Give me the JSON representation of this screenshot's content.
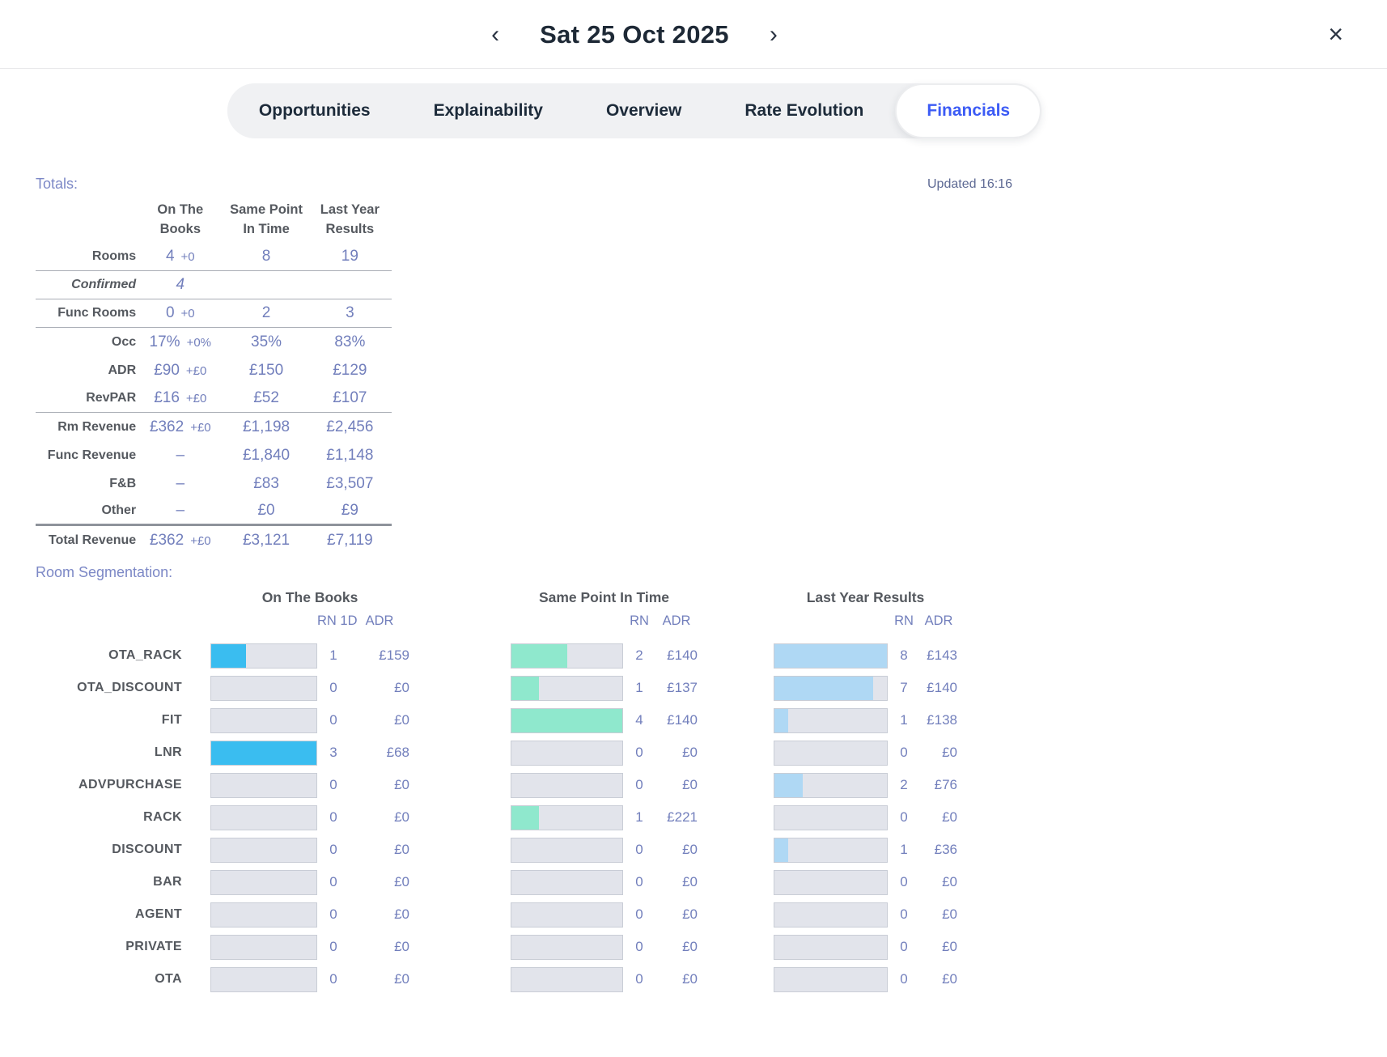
{
  "header": {
    "title": "Sat 25 Oct 2025",
    "prev_icon": "‹",
    "next_icon": "›",
    "close_icon": "×"
  },
  "tabs": {
    "items": [
      {
        "label": "Opportunities",
        "active": false
      },
      {
        "label": "Explainability",
        "active": false
      },
      {
        "label": "Overview",
        "active": false
      },
      {
        "label": "Rate Evolution",
        "active": false
      },
      {
        "label": "Financials",
        "active": true
      }
    ]
  },
  "status": {
    "updated": "Updated 16:16"
  },
  "colors": {
    "accent_blue": "#3C5BF5",
    "value_text": "#727FBC",
    "label_text": "#55595F",
    "otb_bar": "#3ABDF0",
    "spit_bar": "#8FE8CD",
    "ly_bar": "#AFD8F4",
    "bar_track": "#E2E4EB"
  },
  "totals": {
    "section_label": "Totals:",
    "columns": [
      "On The\nBooks",
      "Same Point\nIn Time",
      "Last Year\nResults"
    ],
    "rows": [
      {
        "label": "Rooms",
        "otb": "4",
        "delta": "+0",
        "spit": "8",
        "ly": "19",
        "divider": "thin"
      },
      {
        "label": "Confirmed",
        "otb": "4",
        "delta": "",
        "spit": "",
        "ly": "",
        "divider": "thin",
        "italic": true
      },
      {
        "label": "Func Rooms",
        "otb": "0",
        "delta": "+0",
        "spit": "2",
        "ly": "3",
        "divider": "thin"
      },
      {
        "label": "Occ",
        "otb": "17%",
        "delta": "+0%",
        "spit": "35%",
        "ly": "83%"
      },
      {
        "label": "ADR",
        "otb": "£90",
        "delta": "+£0",
        "spit": "£150",
        "ly": "£129"
      },
      {
        "label": "RevPAR",
        "otb": "£16",
        "delta": "+£0",
        "spit": "£52",
        "ly": "£107",
        "divider": "thin"
      },
      {
        "label": "Rm Revenue",
        "otb": "£362",
        "delta": "+£0",
        "spit": "£1,198",
        "ly": "£2,456"
      },
      {
        "label": "Func Revenue",
        "otb": "–",
        "delta": "",
        "spit": "£1,840",
        "ly": "£1,148"
      },
      {
        "label": "F&B",
        "otb": "–",
        "delta": "",
        "spit": "£83",
        "ly": "£3,507"
      },
      {
        "label": "Other",
        "otb": "–",
        "delta": "",
        "spit": "£0",
        "ly": "£9",
        "divider": "thick"
      },
      {
        "label": "Total Revenue",
        "otb": "£362",
        "delta": "+£0",
        "spit": "£3,121",
        "ly": "£7,119",
        "total": true
      }
    ]
  },
  "segmentation": {
    "section_label": "Room Segmentation:",
    "groups": [
      {
        "title": "On The Books",
        "rn_header": "RN 1D",
        "adr_header": "ADR",
        "bar_color": "#3ABDF0"
      },
      {
        "title": "Same Point In Time",
        "rn_header": "RN",
        "adr_header": "ADR",
        "bar_color": "#8FE8CD"
      },
      {
        "title": "Last Year Results",
        "rn_header": "RN",
        "adr_header": "ADR",
        "bar_color": "#AFD8F4"
      }
    ],
    "rows": [
      {
        "label": "OTA_RACK",
        "cells": [
          {
            "rn": 1,
            "adr": "£159"
          },
          {
            "rn": 2,
            "adr": "£140"
          },
          {
            "rn": 8,
            "adr": "£143"
          }
        ]
      },
      {
        "label": "OTA_DISCOUNT",
        "cells": [
          {
            "rn": 0,
            "adr": "£0"
          },
          {
            "rn": 1,
            "adr": "£137"
          },
          {
            "rn": 7,
            "adr": "£140"
          }
        ]
      },
      {
        "label": "FIT",
        "cells": [
          {
            "rn": 0,
            "adr": "£0"
          },
          {
            "rn": 4,
            "adr": "£140"
          },
          {
            "rn": 1,
            "adr": "£138"
          }
        ]
      },
      {
        "label": "LNR",
        "cells": [
          {
            "rn": 3,
            "adr": "£68"
          },
          {
            "rn": 0,
            "adr": "£0"
          },
          {
            "rn": 0,
            "adr": "£0"
          }
        ]
      },
      {
        "label": "ADVPURCHASE",
        "cells": [
          {
            "rn": 0,
            "adr": "£0"
          },
          {
            "rn": 0,
            "adr": "£0"
          },
          {
            "rn": 2,
            "adr": "£76"
          }
        ]
      },
      {
        "label": "RACK",
        "cells": [
          {
            "rn": 0,
            "adr": "£0"
          },
          {
            "rn": 1,
            "adr": "£221"
          },
          {
            "rn": 0,
            "adr": "£0"
          }
        ]
      },
      {
        "label": "DISCOUNT",
        "cells": [
          {
            "rn": 0,
            "adr": "£0"
          },
          {
            "rn": 0,
            "adr": "£0"
          },
          {
            "rn": 1,
            "adr": "£36"
          }
        ]
      },
      {
        "label": "BAR",
        "cells": [
          {
            "rn": 0,
            "adr": "£0"
          },
          {
            "rn": 0,
            "adr": "£0"
          },
          {
            "rn": 0,
            "adr": "£0"
          }
        ]
      },
      {
        "label": "AGENT",
        "cells": [
          {
            "rn": 0,
            "adr": "£0"
          },
          {
            "rn": 0,
            "adr": "£0"
          },
          {
            "rn": 0,
            "adr": "£0"
          }
        ]
      },
      {
        "label": "PRIVATE",
        "cells": [
          {
            "rn": 0,
            "adr": "£0"
          },
          {
            "rn": 0,
            "adr": "£0"
          },
          {
            "rn": 0,
            "adr": "£0"
          }
        ]
      },
      {
        "label": "OTA",
        "cells": [
          {
            "rn": 0,
            "adr": "£0"
          },
          {
            "rn": 0,
            "adr": "£0"
          },
          {
            "rn": 0,
            "adr": "£0"
          }
        ]
      }
    ]
  }
}
